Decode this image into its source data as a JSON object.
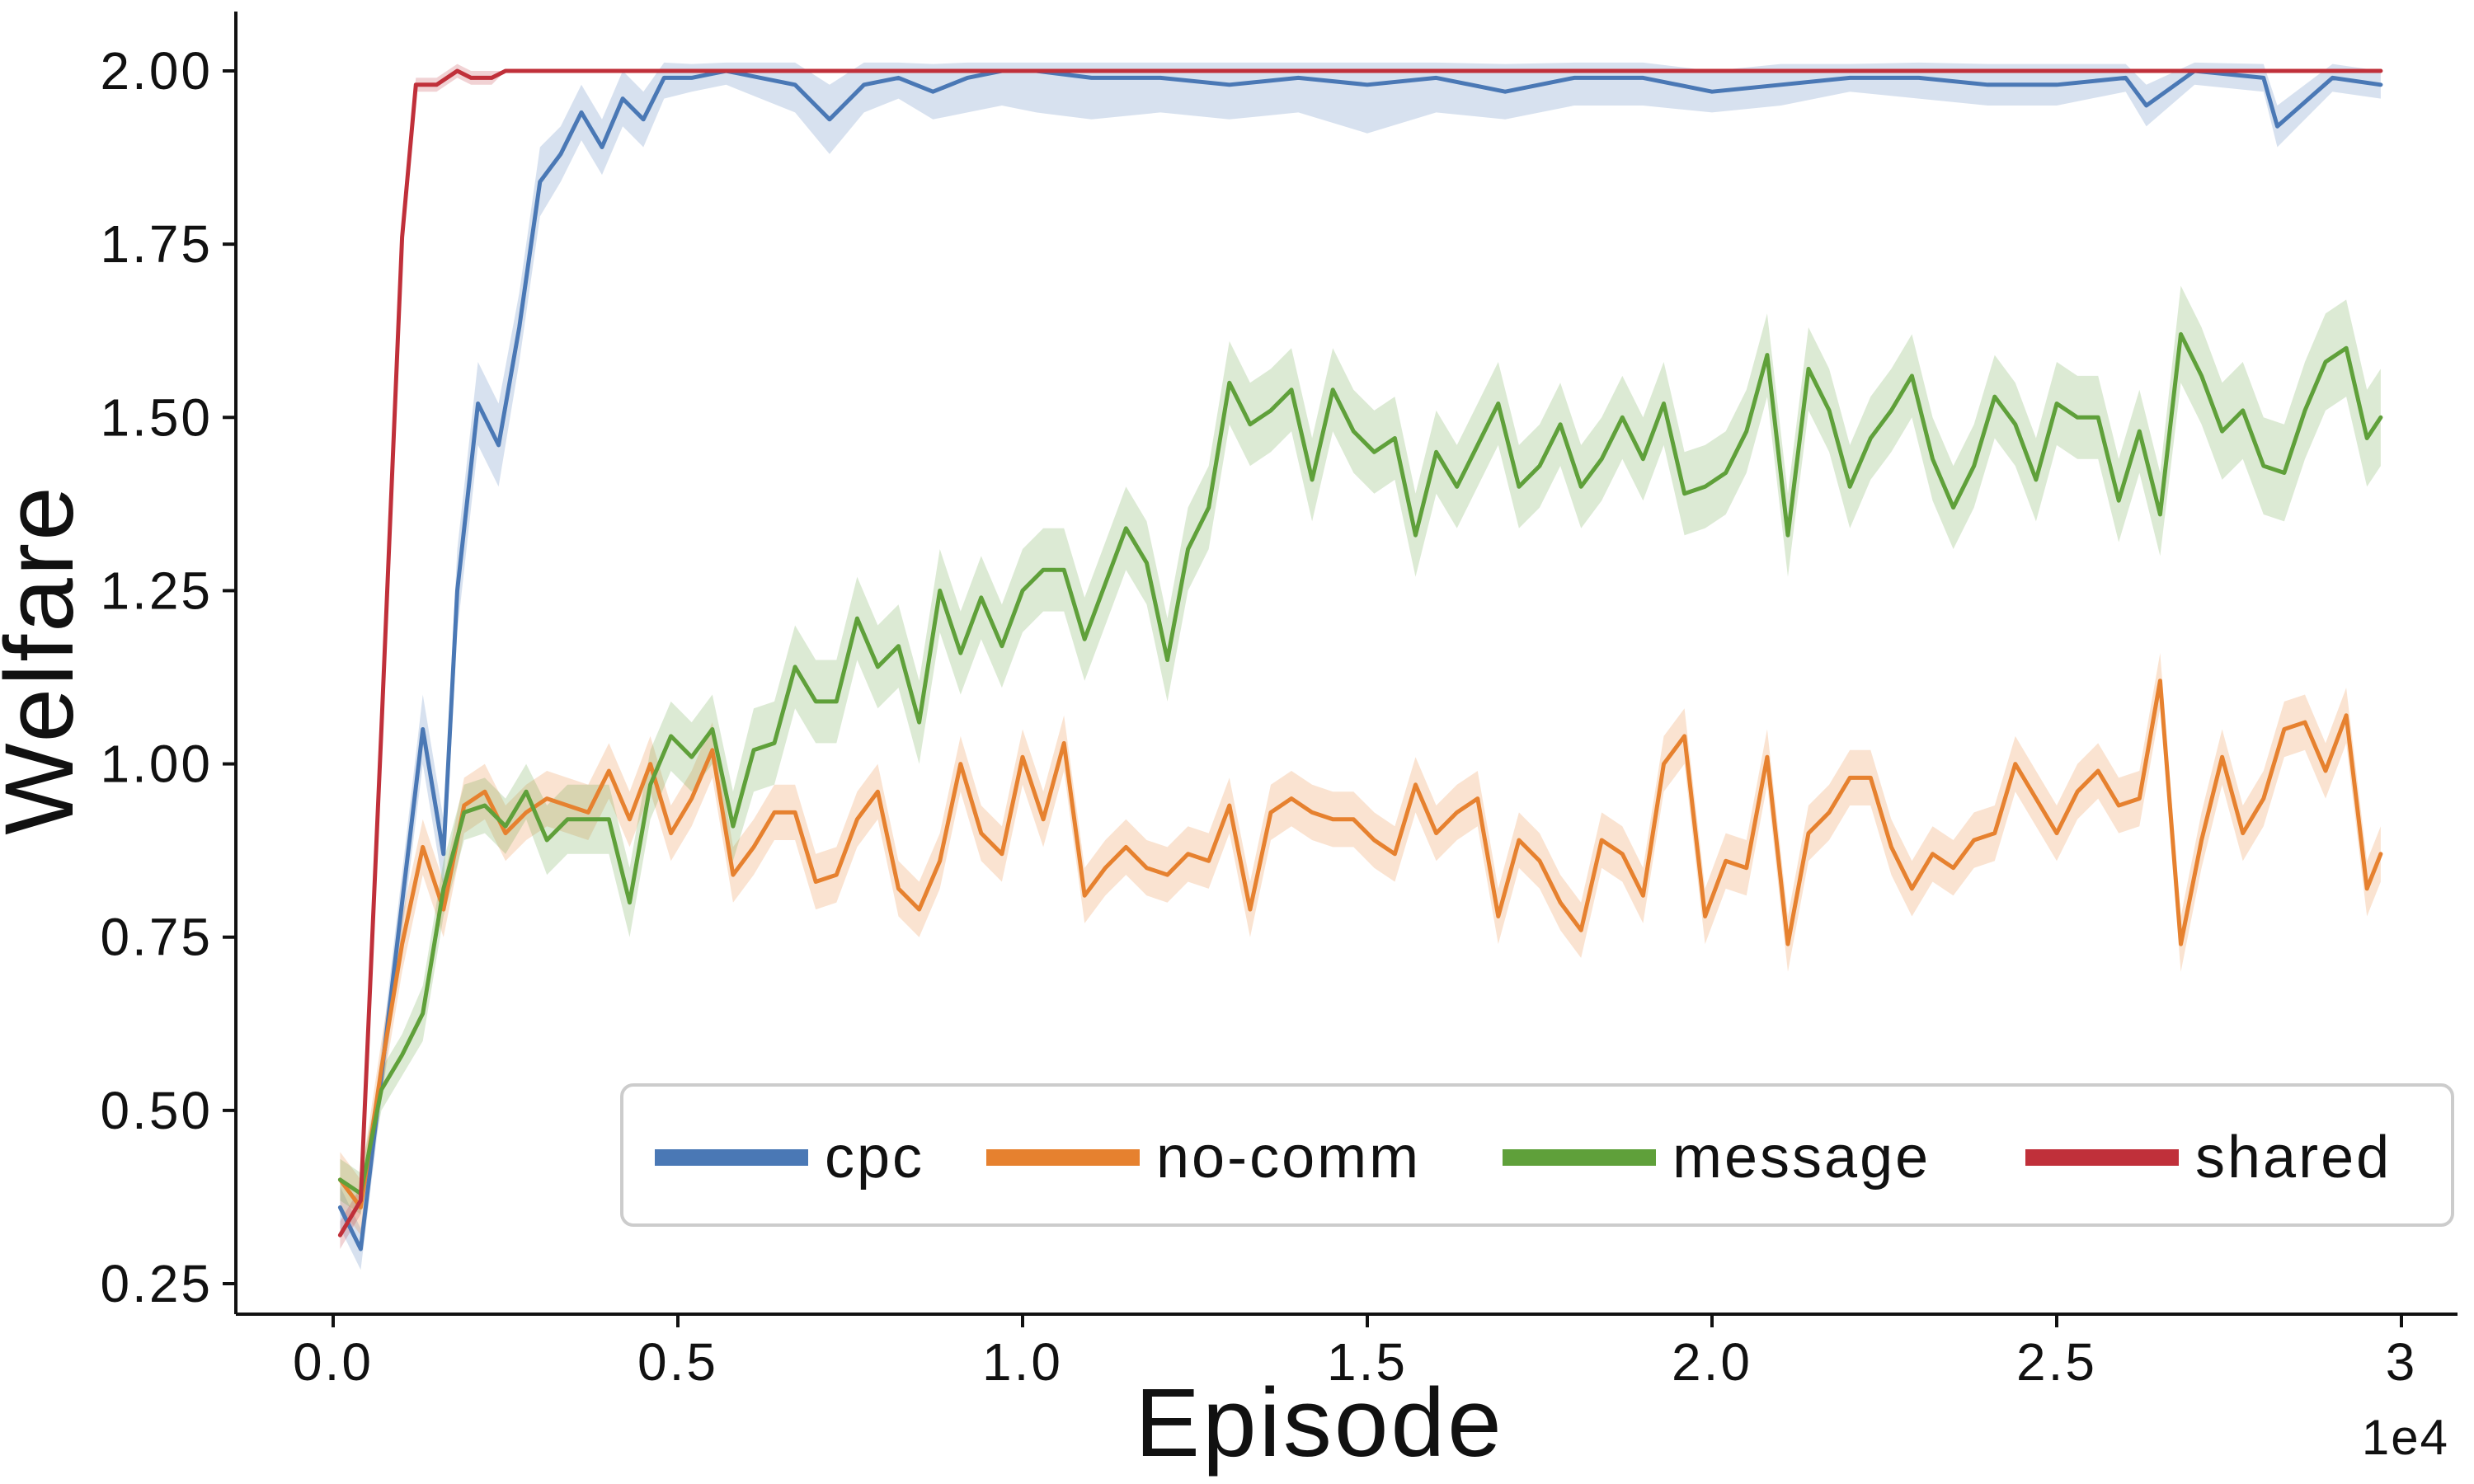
{
  "chart_data": {
    "type": "line",
    "title": "",
    "xlabel": "Episode",
    "ylabel": "Welfare",
    "x_offset_label": "1e4",
    "xlim": [
      0,
      3
    ],
    "ylim": [
      0.22,
      2.09
    ],
    "x_ticks": [
      0.0,
      0.5,
      1.0,
      1.5,
      2.0,
      2.5,
      3
    ],
    "x_tick_labels": [
      "0.0",
      "0.5",
      "1.0",
      "1.5",
      "2.0",
      "2.5",
      "3"
    ],
    "y_ticks": [
      0.25,
      0.5,
      0.75,
      1.0,
      1.25,
      1.5,
      1.75,
      2.0
    ],
    "y_tick_labels": [
      "0.25",
      "0.50",
      "0.75",
      "1.00",
      "1.25",
      "1.50",
      "1.75",
      "2.00"
    ],
    "grid": false,
    "legend_position": "lower-right",
    "series": [
      {
        "name": "cpc",
        "color": "#4a78b5",
        "x": [
          0.01,
          0.04,
          0.13,
          0.16,
          0.18,
          0.21,
          0.24,
          0.27,
          0.3,
          0.33,
          0.36,
          0.39,
          0.42,
          0.45,
          0.48,
          0.52,
          0.57,
          0.62,
          0.67,
          0.72,
          0.77,
          0.82,
          0.87,
          0.92,
          0.97,
          1.02,
          1.1,
          1.2,
          1.3,
          1.4,
          1.5,
          1.6,
          1.7,
          1.8,
          1.9,
          2.0,
          2.1,
          2.2,
          2.3,
          2.4,
          2.5,
          2.6,
          2.63,
          2.7,
          2.8,
          2.82,
          2.9,
          2.97
        ],
        "values": [
          0.36,
          0.3,
          1.05,
          0.87,
          1.25,
          1.52,
          1.46,
          1.63,
          1.84,
          1.88,
          1.94,
          1.89,
          1.96,
          1.93,
          1.99,
          1.99,
          2.0,
          1.99,
          1.98,
          1.93,
          1.98,
          1.99,
          1.97,
          1.99,
          2.0,
          2.0,
          1.99,
          1.99,
          1.98,
          1.99,
          1.98,
          1.99,
          1.97,
          1.99,
          1.99,
          1.97,
          1.98,
          1.99,
          1.99,
          1.98,
          1.98,
          1.99,
          1.95,
          2.0,
          1.99,
          1.92,
          1.99,
          1.98
        ],
        "band_halfwidth": [
          0.03,
          0.03,
          0.05,
          0.05,
          0.06,
          0.06,
          0.06,
          0.05,
          0.05,
          0.04,
          0.04,
          0.04,
          0.04,
          0.04,
          0.03,
          0.02,
          0.02,
          0.03,
          0.04,
          0.05,
          0.04,
          0.03,
          0.04,
          0.05,
          0.05,
          0.06,
          0.06,
          0.05,
          0.05,
          0.05,
          0.07,
          0.05,
          0.04,
          0.04,
          0.04,
          0.03,
          0.03,
          0.02,
          0.03,
          0.03,
          0.03,
          0.02,
          0.03,
          0.02,
          0.02,
          0.03,
          0.02,
          0.02
        ]
      },
      {
        "name": "no-comm",
        "color": "#e6812f",
        "x": [
          0.01,
          0.04,
          0.07,
          0.1,
          0.13,
          0.16,
          0.19,
          0.22,
          0.25,
          0.28,
          0.31,
          0.34,
          0.37,
          0.4,
          0.43,
          0.46,
          0.49,
          0.52,
          0.55,
          0.58,
          0.61,
          0.64,
          0.67,
          0.7,
          0.73,
          0.76,
          0.79,
          0.82,
          0.85,
          0.88,
          0.91,
          0.94,
          0.97,
          1.0,
          1.03,
          1.06,
          1.09,
          1.12,
          1.15,
          1.18,
          1.21,
          1.24,
          1.27,
          1.3,
          1.33,
          1.36,
          1.39,
          1.42,
          1.45,
          1.48,
          1.51,
          1.54,
          1.57,
          1.6,
          1.63,
          1.66,
          1.69,
          1.72,
          1.75,
          1.78,
          1.81,
          1.84,
          1.87,
          1.9,
          1.93,
          1.96,
          1.99,
          2.02,
          2.05,
          2.08,
          2.11,
          2.14,
          2.17,
          2.2,
          2.23,
          2.26,
          2.29,
          2.32,
          2.35,
          2.38,
          2.41,
          2.44,
          2.47,
          2.5,
          2.53,
          2.56,
          2.59,
          2.62,
          2.65,
          2.68,
          2.71,
          2.74,
          2.77,
          2.8,
          2.83,
          2.86,
          2.89,
          2.92,
          2.95,
          2.97
        ],
        "values": [
          0.4,
          0.36,
          0.56,
          0.74,
          0.88,
          0.79,
          0.94,
          0.96,
          0.9,
          0.93,
          0.95,
          0.94,
          0.93,
          0.99,
          0.92,
          1.0,
          0.9,
          0.95,
          1.02,
          0.84,
          0.88,
          0.93,
          0.93,
          0.83,
          0.84,
          0.92,
          0.96,
          0.82,
          0.79,
          0.86,
          1.0,
          0.9,
          0.87,
          1.01,
          0.92,
          1.03,
          0.81,
          0.85,
          0.88,
          0.85,
          0.84,
          0.87,
          0.86,
          0.94,
          0.79,
          0.93,
          0.95,
          0.93,
          0.92,
          0.92,
          0.89,
          0.87,
          0.97,
          0.9,
          0.93,
          0.95,
          0.78,
          0.89,
          0.86,
          0.8,
          0.76,
          0.89,
          0.87,
          0.81,
          1.0,
          1.04,
          0.78,
          0.86,
          0.85,
          1.01,
          0.74,
          0.9,
          0.93,
          0.98,
          0.98,
          0.88,
          0.82,
          0.87,
          0.85,
          0.89,
          0.9,
          1.0,
          0.95,
          0.9,
          0.96,
          0.99,
          0.94,
          0.95,
          1.12,
          0.74,
          0.89,
          1.01,
          0.9,
          0.95,
          1.05,
          1.06,
          0.99,
          1.07,
          0.82,
          0.87
        ],
        "band_halfwidth": [
          0.04,
          0.04,
          0.04,
          0.04,
          0.04,
          0.04,
          0.04,
          0.04,
          0.04,
          0.04,
          0.04,
          0.04,
          0.04,
          0.04,
          0.04,
          0.04,
          0.04,
          0.04,
          0.04,
          0.04,
          0.04,
          0.04,
          0.04,
          0.04,
          0.04,
          0.04,
          0.04,
          0.04,
          0.04,
          0.04,
          0.04,
          0.04,
          0.04,
          0.04,
          0.04,
          0.04,
          0.04,
          0.04,
          0.04,
          0.04,
          0.04,
          0.04,
          0.04,
          0.04,
          0.04,
          0.04,
          0.04,
          0.04,
          0.04,
          0.04,
          0.04,
          0.04,
          0.04,
          0.04,
          0.04,
          0.04,
          0.04,
          0.04,
          0.04,
          0.04,
          0.04,
          0.04,
          0.04,
          0.04,
          0.04,
          0.04,
          0.04,
          0.04,
          0.04,
          0.04,
          0.04,
          0.04,
          0.04,
          0.04,
          0.04,
          0.04,
          0.04,
          0.04,
          0.04,
          0.04,
          0.04,
          0.04,
          0.04,
          0.04,
          0.04,
          0.04,
          0.04,
          0.04,
          0.04,
          0.04,
          0.04,
          0.04,
          0.04,
          0.04,
          0.04,
          0.04,
          0.04,
          0.04,
          0.04,
          0.04
        ]
      },
      {
        "name": "message",
        "color": "#5fa03a",
        "x": [
          0.01,
          0.04,
          0.07,
          0.1,
          0.13,
          0.16,
          0.19,
          0.22,
          0.25,
          0.28,
          0.31,
          0.34,
          0.37,
          0.4,
          0.43,
          0.46,
          0.49,
          0.52,
          0.55,
          0.58,
          0.61,
          0.64,
          0.67,
          0.7,
          0.73,
          0.76,
          0.79,
          0.82,
          0.85,
          0.88,
          0.91,
          0.94,
          0.97,
          1.0,
          1.03,
          1.06,
          1.09,
          1.12,
          1.15,
          1.18,
          1.21,
          1.24,
          1.27,
          1.3,
          1.33,
          1.36,
          1.39,
          1.42,
          1.45,
          1.48,
          1.51,
          1.54,
          1.57,
          1.6,
          1.63,
          1.66,
          1.69,
          1.72,
          1.75,
          1.78,
          1.81,
          1.84,
          1.87,
          1.9,
          1.93,
          1.96,
          1.99,
          2.02,
          2.05,
          2.08,
          2.11,
          2.14,
          2.17,
          2.2,
          2.23,
          2.26,
          2.29,
          2.32,
          2.35,
          2.38,
          2.41,
          2.44,
          2.47,
          2.5,
          2.53,
          2.56,
          2.59,
          2.62,
          2.65,
          2.68,
          2.71,
          2.74,
          2.77,
          2.8,
          2.83,
          2.86,
          2.89,
          2.92,
          2.95,
          2.97
        ],
        "values": [
          0.4,
          0.38,
          0.53,
          0.58,
          0.64,
          0.82,
          0.93,
          0.94,
          0.91,
          0.96,
          0.89,
          0.92,
          0.92,
          0.92,
          0.8,
          0.97,
          1.04,
          1.01,
          1.05,
          0.91,
          1.02,
          1.03,
          1.14,
          1.09,
          1.09,
          1.21,
          1.14,
          1.17,
          1.06,
          1.25,
          1.16,
          1.24,
          1.17,
          1.25,
          1.28,
          1.28,
          1.18,
          1.26,
          1.34,
          1.29,
          1.15,
          1.31,
          1.37,
          1.55,
          1.49,
          1.51,
          1.54,
          1.41,
          1.54,
          1.48,
          1.45,
          1.47,
          1.33,
          1.45,
          1.4,
          1.46,
          1.52,
          1.4,
          1.43,
          1.49,
          1.4,
          1.44,
          1.5,
          1.44,
          1.52,
          1.39,
          1.4,
          1.42,
          1.48,
          1.59,
          1.33,
          1.57,
          1.51,
          1.4,
          1.47,
          1.51,
          1.56,
          1.44,
          1.37,
          1.43,
          1.53,
          1.49,
          1.41,
          1.52,
          1.5,
          1.5,
          1.38,
          1.48,
          1.36,
          1.62,
          1.56,
          1.48,
          1.51,
          1.43,
          1.42,
          1.51,
          1.58,
          1.6,
          1.47,
          1.5
        ],
        "band_halfwidth": [
          0.03,
          0.03,
          0.03,
          0.03,
          0.04,
          0.04,
          0.04,
          0.04,
          0.04,
          0.04,
          0.05,
          0.05,
          0.05,
          0.05,
          0.05,
          0.05,
          0.05,
          0.05,
          0.05,
          0.05,
          0.06,
          0.06,
          0.06,
          0.06,
          0.06,
          0.06,
          0.06,
          0.06,
          0.06,
          0.06,
          0.06,
          0.06,
          0.06,
          0.06,
          0.06,
          0.06,
          0.06,
          0.06,
          0.06,
          0.06,
          0.06,
          0.06,
          0.06,
          0.06,
          0.06,
          0.06,
          0.06,
          0.06,
          0.06,
          0.06,
          0.06,
          0.06,
          0.06,
          0.06,
          0.06,
          0.06,
          0.06,
          0.06,
          0.06,
          0.06,
          0.06,
          0.06,
          0.06,
          0.06,
          0.06,
          0.06,
          0.06,
          0.06,
          0.06,
          0.06,
          0.06,
          0.06,
          0.06,
          0.06,
          0.06,
          0.06,
          0.06,
          0.06,
          0.06,
          0.06,
          0.06,
          0.06,
          0.06,
          0.06,
          0.06,
          0.06,
          0.06,
          0.06,
          0.06,
          0.07,
          0.07,
          0.07,
          0.07,
          0.07,
          0.07,
          0.07,
          0.07,
          0.07,
          0.07,
          0.07
        ]
      },
      {
        "name": "shared",
        "color": "#c0303a",
        "x": [
          0.01,
          0.04,
          0.07,
          0.1,
          0.12,
          0.15,
          0.18,
          0.2,
          0.23,
          0.25,
          0.3,
          0.4,
          0.5,
          0.6,
          0.8,
          1.0,
          1.5,
          2.0,
          2.5,
          2.97
        ],
        "values": [
          0.32,
          0.37,
          1.05,
          1.76,
          1.98,
          1.98,
          2.0,
          1.99,
          1.99,
          2.0,
          2.0,
          2.0,
          2.0,
          2.0,
          2.0,
          2.0,
          2.0,
          2.0,
          2.0,
          2.0
        ],
        "band_halfwidth": [
          0.02,
          0.02,
          0.02,
          0.02,
          0.01,
          0.01,
          0.01,
          0.01,
          0.01,
          0.0,
          0.0,
          0.0,
          0.0,
          0.0,
          0.0,
          0.0,
          0.0,
          0.0,
          0.0,
          0.0
        ]
      }
    ]
  }
}
